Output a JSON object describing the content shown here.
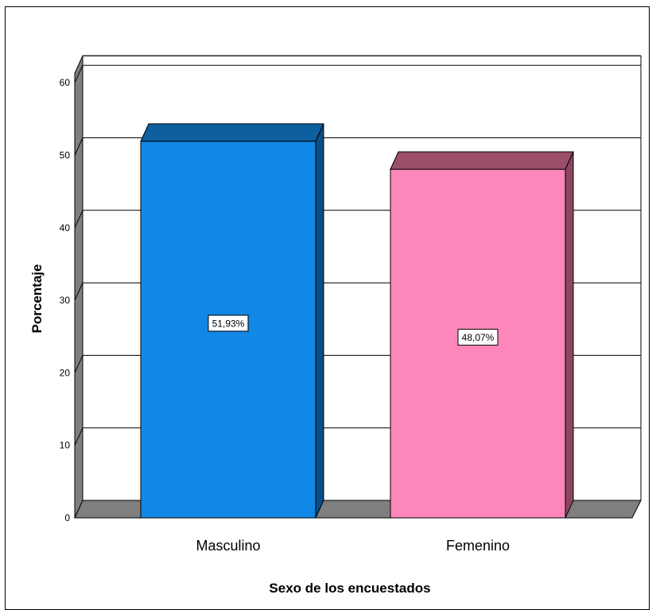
{
  "chart_data": {
    "type": "bar",
    "style": "3d",
    "categories": [
      "Masculino",
      "Femenino"
    ],
    "values": [
      51.93,
      48.07
    ],
    "data_labels": [
      "51,93%",
      "48,07%"
    ],
    "xlabel": "Sexo de los encuestados",
    "ylabel": "Porcentaje",
    "ylim": [
      0,
      60
    ],
    "yticks": [
      "0",
      "10",
      "20",
      "30",
      "40",
      "50",
      "60"
    ],
    "grid": true,
    "legend": "none",
    "colors": {
      "bars": [
        "#1188E6",
        "#FD86BA"
      ],
      "bar_tops": [
        "#0D5F9E",
        "#9C4E6B"
      ],
      "bar_sides": [
        "#0A4E85",
        "#8C4662"
      ],
      "floor": "#7F7F7F",
      "wall": "#FFFFFF",
      "wall_side": "#7F7F7F"
    }
  }
}
